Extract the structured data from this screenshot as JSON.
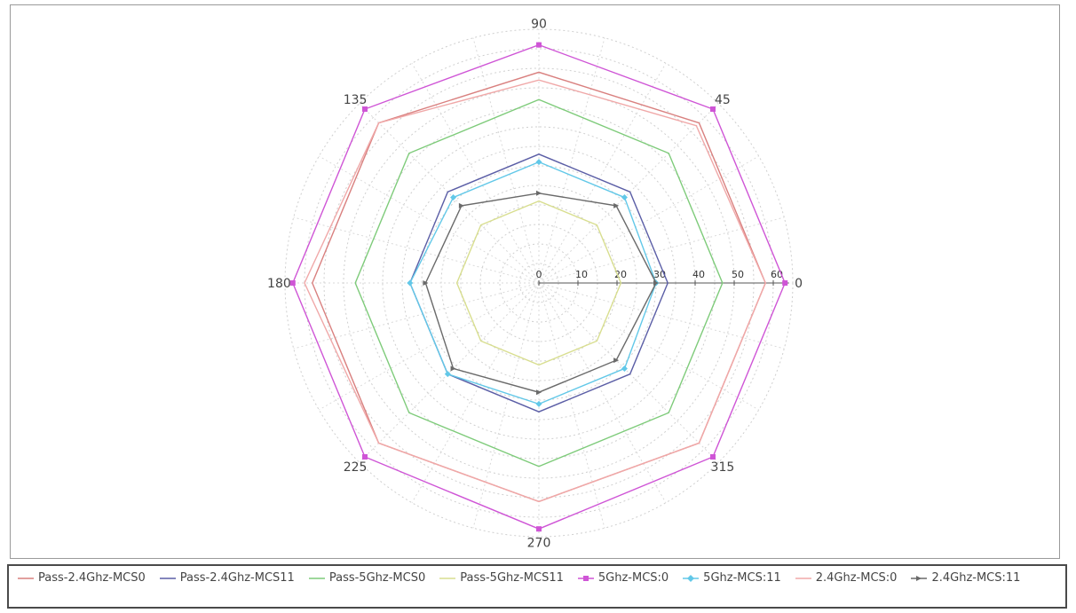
{
  "chart_data": {
    "type": "radar",
    "title": "",
    "angle_labels": [
      "0",
      "45",
      "90",
      "135",
      "180",
      "225",
      "270",
      "315"
    ],
    "angles_deg": [
      0,
      45,
      90,
      135,
      180,
      225,
      270,
      315
    ],
    "radial_ticks": [
      0,
      10,
      20,
      30,
      40,
      50,
      60
    ],
    "radial_range": [
      0,
      65
    ],
    "grid": true,
    "legend_position": "bottom",
    "series": [
      {
        "name": "Pass-2.4Ghz-MCS0",
        "color": "#d9807f",
        "marker": "none",
        "values": [
          58,
          58,
          54,
          58,
          58,
          58,
          56,
          58
        ]
      },
      {
        "name": "Pass-2.4Ghz-MCS11",
        "color": "#5b5ea6",
        "marker": "none",
        "values": [
          33,
          33,
          33,
          33,
          33,
          33,
          33,
          33
        ]
      },
      {
        "name": "Pass-5Ghz-MCS0",
        "color": "#7ecb7a",
        "marker": "none",
        "values": [
          47,
          47,
          47,
          47,
          47,
          47,
          47,
          47
        ]
      },
      {
        "name": "Pass-5Ghz-MCS11",
        "color": "#d8de8f",
        "marker": "none",
        "values": [
          21,
          21,
          21,
          21,
          21,
          21,
          21,
          21
        ]
      },
      {
        "name": "5Ghz-MCS:0",
        "color": "#cf55d6",
        "marker": "square",
        "values": [
          63,
          63,
          61,
          63,
          63,
          63,
          63,
          63
        ]
      },
      {
        "name": "5Ghz-MCS:11",
        "color": "#62c8e8",
        "marker": "diamond",
        "values": [
          30,
          31,
          31,
          31,
          33,
          33,
          31,
          31
        ]
      },
      {
        "name": "2.4Ghz-MCS:0",
        "color": "#f0a8a8",
        "marker": "none",
        "values": [
          58,
          57,
          52,
          58,
          60,
          58,
          56,
          58
        ]
      },
      {
        "name": "2.4Ghz-MCS:11",
        "color": "#6a6a6a",
        "marker": "arrow",
        "values": [
          30,
          28,
          23,
          28,
          29,
          31,
          28,
          28
        ]
      }
    ]
  }
}
